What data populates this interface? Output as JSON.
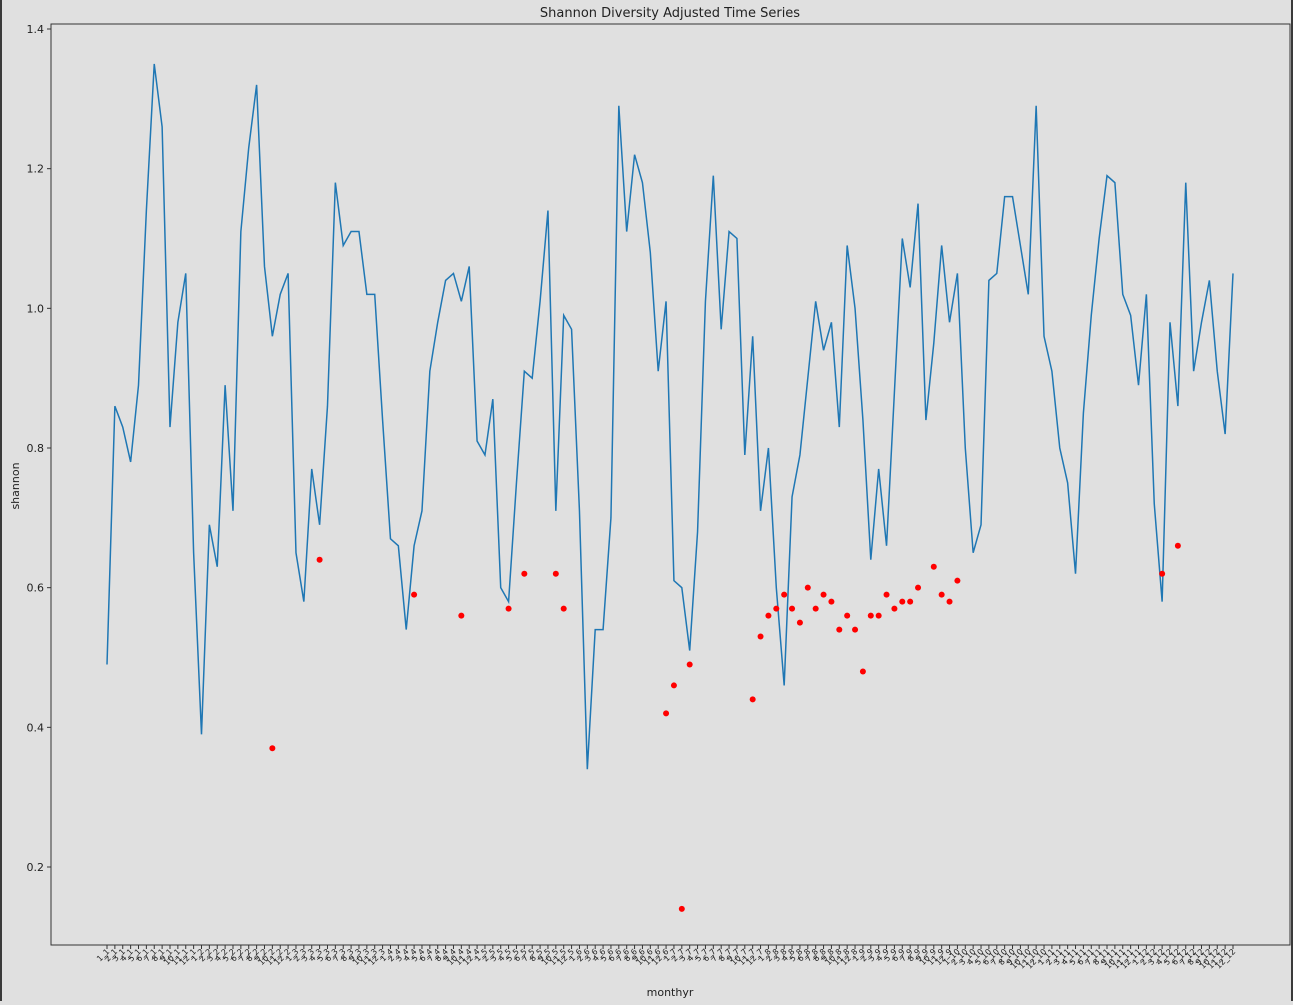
{
  "chart_data": {
    "type": "line",
    "title": "Shannon Diversity Adjusted Time Series",
    "xlabel": "monthyr",
    "ylabel": "shannon",
    "ylim": [
      0.2,
      1.4
    ],
    "yticks": [
      "0.2",
      "0.4",
      "0.6",
      "0.8",
      "1.0",
      "1.2",
      "1.4"
    ],
    "grid": false,
    "colors": {
      "line": "#1f77b4",
      "points": "#ff0000",
      "plot_bg": "#e0e0e0",
      "axes": "#333333"
    },
    "categories": [
      "1_1",
      "2_1",
      "3_1",
      "4_1",
      "5_1",
      "6_1",
      "7_1",
      "8_1",
      "9_1",
      "10_1",
      "11_1",
      "12_1",
      "1_2",
      "2_2",
      "3_2",
      "4_2",
      "5_2",
      "6_2",
      "7_2",
      "8_2",
      "9_2",
      "10_2",
      "11_2",
      "12_2",
      "1_3",
      "2_3",
      "3_3",
      "4_3",
      "5_3",
      "6_3",
      "7_3",
      "8_3",
      "9_3",
      "10_3",
      "11_3",
      "12_3",
      "1_4",
      "2_4",
      "3_4",
      "4_4",
      "5_4",
      "6_4",
      "7_4",
      "8_4",
      "9_4",
      "10_4",
      "11_4",
      "12_4",
      "1_5",
      "2_5",
      "3_5",
      "4_5",
      "5_5",
      "6_5",
      "7_5",
      "8_5",
      "9_5",
      "10_5",
      "11_5",
      "12_5",
      "1_6",
      "2_6",
      "3_6",
      "4_6",
      "5_6",
      "6_6",
      "7_6",
      "8_6",
      "9_6",
      "10_6",
      "11_6",
      "12_6",
      "1_7",
      "2_7",
      "3_7",
      "4_7",
      "5_7",
      "6_7",
      "7_7",
      "8_7",
      "9_7",
      "10_7",
      "11_7",
      "12_7",
      "1_8",
      "2_8",
      "3_8",
      "4_8",
      "5_8",
      "6_8",
      "7_8",
      "8_8",
      "9_8",
      "10_8",
      "11_8",
      "12_8",
      "1_9",
      "2_9",
      "3_9",
      "4_9",
      "5_9",
      "6_9",
      "7_9",
      "8_9",
      "9_9",
      "10_9",
      "11_9",
      "12_9",
      "1_10",
      "2_10",
      "3_10",
      "4_10",
      "5_10",
      "6_10",
      "7_10",
      "8_10",
      "9_10",
      "10_10",
      "11_10",
      "12_10",
      "1_11",
      "2_11",
      "3_11",
      "4_11",
      "5_11",
      "6_11",
      "7_11",
      "8_11",
      "9_11",
      "10_11",
      "11_11",
      "12_11",
      "1_12",
      "2_12",
      "3_12",
      "4_12",
      "5_12",
      "6_12",
      "7_12",
      "8_12",
      "9_12",
      "10_12",
      "11_12",
      "12_12"
    ],
    "series": [
      {
        "type": "line",
        "values": [
          0.49,
          0.86,
          0.83,
          0.78,
          0.89,
          1.14,
          1.35,
          1.26,
          0.83,
          0.98,
          1.05,
          0.65,
          0.39,
          0.69,
          0.63,
          0.89,
          0.71,
          1.11,
          1.23,
          1.32,
          1.06,
          0.96,
          1.02,
          1.05,
          0.65,
          0.58,
          0.77,
          0.69,
          0.86,
          1.18,
          1.09,
          1.11,
          1.11,
          1.02,
          1.02,
          0.84,
          0.67,
          0.66,
          0.54,
          0.66,
          0.71,
          0.91,
          0.98,
          1.04,
          1.05,
          1.01,
          1.06,
          0.81,
          0.79,
          0.87,
          0.6,
          0.58,
          0.75,
          0.91,
          0.9,
          1.01,
          1.14,
          0.71,
          0.99,
          0.97,
          0.71,
          0.34,
          0.54,
          0.54,
          0.7,
          1.29,
          1.11,
          1.22,
          1.18,
          1.08,
          0.91,
          1.01,
          0.61,
          0.6,
          0.51,
          0.68,
          1.01,
          1.19,
          0.97,
          1.11,
          1.1,
          0.79,
          0.96,
          0.71,
          0.8,
          0.6,
          0.46,
          0.73,
          0.79,
          0.9,
          1.01,
          0.94,
          0.98,
          0.83,
          1.09,
          1.0,
          0.84,
          0.64,
          0.77,
          0.66,
          0.88,
          1.1,
          1.03,
          1.15,
          0.84,
          0.95,
          1.09,
          0.98,
          1.05,
          0.8,
          0.65,
          0.69,
          1.04,
          1.05,
          1.16,
          1.16,
          1.09,
          1.02,
          1.29,
          0.96,
          0.91,
          0.8,
          0.75,
          0.62,
          0.85,
          0.99,
          1.1,
          1.19,
          1.18,
          1.02,
          0.99,
          0.89,
          1.02,
          0.72,
          0.58,
          0.98,
          0.86,
          1.18,
          0.91,
          0.98,
          1.04,
          0.91,
          0.82,
          1.05
        ]
      },
      {
        "type": "scatter",
        "points": [
          {
            "x": "10_2",
            "y": 0.37
          },
          {
            "x": "4_3",
            "y": 0.64
          },
          {
            "x": "4_4",
            "y": 0.59
          },
          {
            "x": "10_4",
            "y": 0.56
          },
          {
            "x": "4_5",
            "y": 0.57
          },
          {
            "x": "6_5",
            "y": 0.62
          },
          {
            "x": "10_5",
            "y": 0.62
          },
          {
            "x": "11_5",
            "y": 0.57
          },
          {
            "x": "12_6",
            "y": 0.42
          },
          {
            "x": "1_7",
            "y": 0.46
          },
          {
            "x": "2_7",
            "y": 0.14
          },
          {
            "x": "3_7",
            "y": 0.49
          },
          {
            "x": "11_7",
            "y": 0.44
          },
          {
            "x": "12_7",
            "y": 0.53
          },
          {
            "x": "1_8",
            "y": 0.56
          },
          {
            "x": "2_8",
            "y": 0.57
          },
          {
            "x": "3_8",
            "y": 0.59
          },
          {
            "x": "4_8",
            "y": 0.57
          },
          {
            "x": "5_8",
            "y": 0.55
          },
          {
            "x": "6_8",
            "y": 0.6
          },
          {
            "x": "7_8",
            "y": 0.57
          },
          {
            "x": "8_8",
            "y": 0.59
          },
          {
            "x": "9_8",
            "y": 0.58
          },
          {
            "x": "10_8",
            "y": 0.54
          },
          {
            "x": "11_8",
            "y": 0.56
          },
          {
            "x": "12_8",
            "y": 0.54
          },
          {
            "x": "1_9",
            "y": 0.48
          },
          {
            "x": "2_9",
            "y": 0.56
          },
          {
            "x": "3_9",
            "y": 0.56
          },
          {
            "x": "4_9",
            "y": 0.59
          },
          {
            "x": "5_9",
            "y": 0.57
          },
          {
            "x": "6_9",
            "y": 0.58
          },
          {
            "x": "7_9",
            "y": 0.58
          },
          {
            "x": "8_9",
            "y": 0.6
          },
          {
            "x": "10_9",
            "y": 0.63
          },
          {
            "x": "11_9",
            "y": 0.59
          },
          {
            "x": "12_9",
            "y": 0.58
          },
          {
            "x": "1_10",
            "y": 0.61
          },
          {
            "x": "3_12",
            "y": 0.62
          },
          {
            "x": "5_12",
            "y": 0.66
          }
        ]
      }
    ]
  }
}
